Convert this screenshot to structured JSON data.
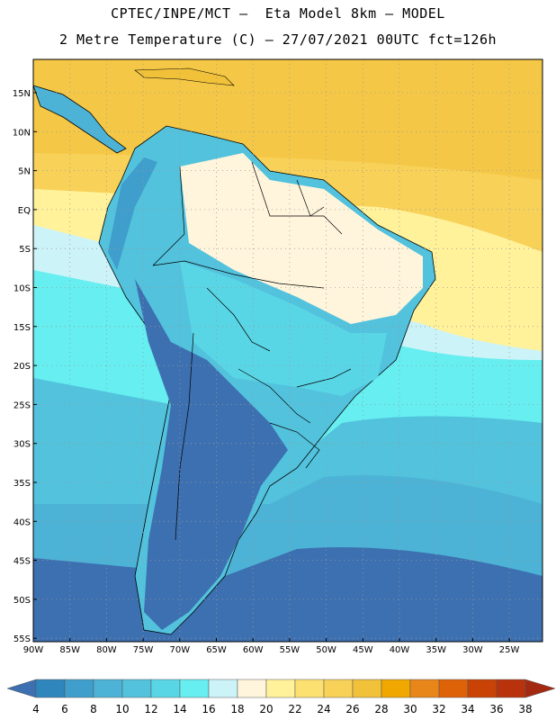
{
  "title_line1": "CPTEC/INPE/MCT –  Eta Model 8km – MODEL",
  "title_line2": "2 Metre Temperature (C) – 27/07/2021 00UTC fct=126h",
  "lat_labels": [
    "15N",
    "10N",
    "5N",
    "EQ",
    "5S",
    "10S",
    "15S",
    "20S",
    "25S",
    "30S",
    "35S",
    "40S",
    "45S",
    "50S",
    "55S"
  ],
  "lon_labels": [
    "90W",
    "85W",
    "80W",
    "75W",
    "70W",
    "65W",
    "60W",
    "55W",
    "50W",
    "45W",
    "40W",
    "35W",
    "30W",
    "25W"
  ],
  "colorbar": {
    "labels": [
      "4",
      "6",
      "8",
      "10",
      "12",
      "14",
      "16",
      "18",
      "20",
      "22",
      "24",
      "26",
      "28",
      "30",
      "32",
      "34",
      "36",
      "38"
    ],
    "colors": [
      "#3d70b0",
      "#2f86bd",
      "#3f9ecb",
      "#4db3d6",
      "#52c2dd",
      "#59d6e6",
      "#66eef0",
      "#ccf3f8",
      "#fff5dc",
      "#fff29a",
      "#fce070",
      "#f8d158",
      "#f2c13a",
      "#f0a800",
      "#e8861a",
      "#de6208",
      "#c94206",
      "#b8330c",
      "#a32a10"
    ]
  },
  "map": {
    "ocean_colors": [
      "#3d70b0",
      "#4db3d6",
      "#52c2dd",
      "#66eef0",
      "#ccf3f8",
      "#fff29a",
      "#f8d158"
    ],
    "land_cold_color": "#3d70b0",
    "land_mid_color": "#59d6e6",
    "land_warm_color": "#fff5dc"
  }
}
